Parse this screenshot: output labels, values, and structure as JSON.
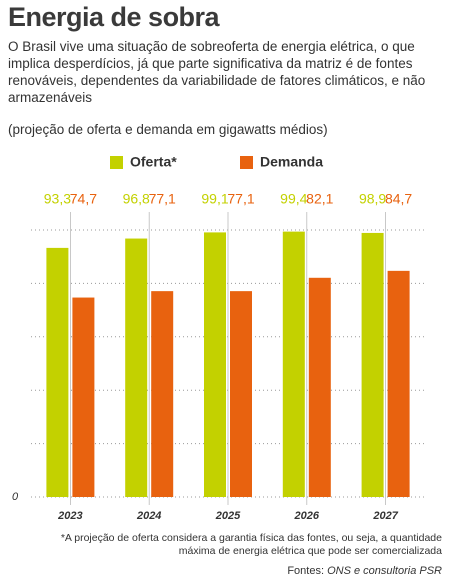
{
  "chart_data": {
    "type": "bar",
    "title": "Energia de sobra",
    "description": "O Brasil vive uma situação de sobreoferta de energia elétrica, o que implica desperdícios, já que parte significativa da matriz é de fontes renováveis, dependentes da variabilidade de fatores climáticos, e não armazenáveis",
    "subtitle": "(projeção de oferta e demanda em gigawatts médios)",
    "categories": [
      "2023",
      "2024",
      "2025",
      "2026",
      "2027"
    ],
    "series": [
      {
        "name": "Oferta*",
        "color": "#c3d100",
        "values": [
          93.3,
          96.8,
          99.1,
          99.4,
          98.9
        ],
        "value_labels": [
          "93,3",
          "96,8",
          "99,1",
          "99,4",
          "98,9"
        ]
      },
      {
        "name": "Demanda",
        "color": "#e8620f",
        "values": [
          74.7,
          77.1,
          77.1,
          82.1,
          84.7
        ],
        "value_labels": [
          "74,7",
          "77,1",
          "77,1",
          "82,1",
          "84,7"
        ]
      }
    ],
    "ylim": [
      0,
      100
    ],
    "yticks": [
      0
    ],
    "grid_values": [
      20,
      40,
      60,
      80,
      100
    ],
    "footnote": "*A projeção de oferta considera a garantia física das fontes, ou seja, a quantidade máxima de energia elétrica que pode ser comercializada",
    "source_label": "Fontes:",
    "source": "ONS e consultoria PSR"
  }
}
